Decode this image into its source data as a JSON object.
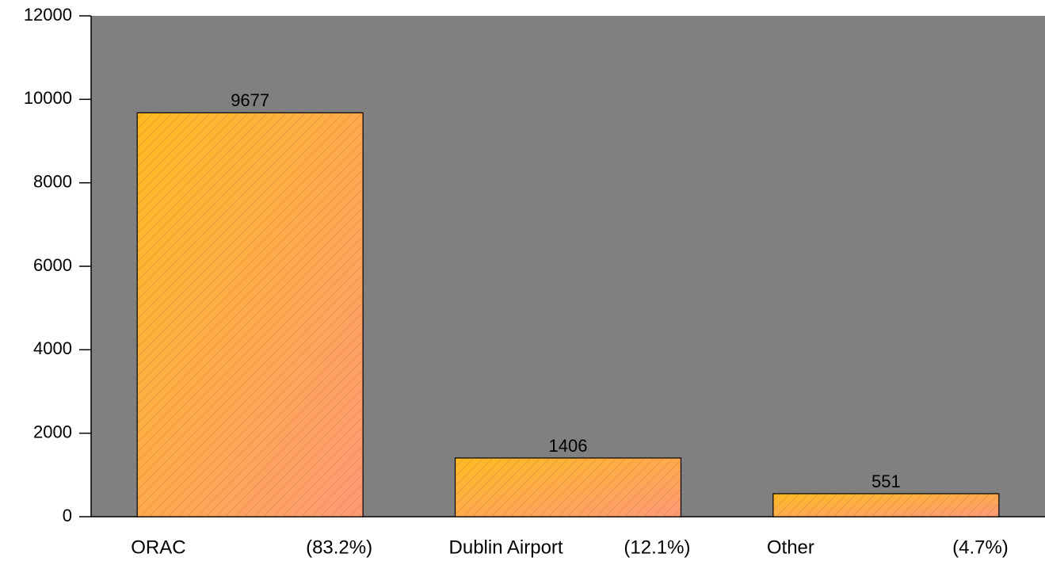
{
  "chart_data": {
    "type": "bar",
    "categories": [
      "ORAC",
      "Dublin Airport",
      "Other"
    ],
    "category_notes": [
      "(83.2%)",
      "(12.1%)",
      "(4.7%)"
    ],
    "values": [
      9677,
      1406,
      551
    ],
    "color": "#ffbb22",
    "color_end": "#ff9977",
    "background": "#808080",
    "ylim": [
      0,
      12000
    ],
    "yticks": [
      0,
      2000,
      4000,
      6000,
      8000,
      10000,
      12000
    ]
  }
}
